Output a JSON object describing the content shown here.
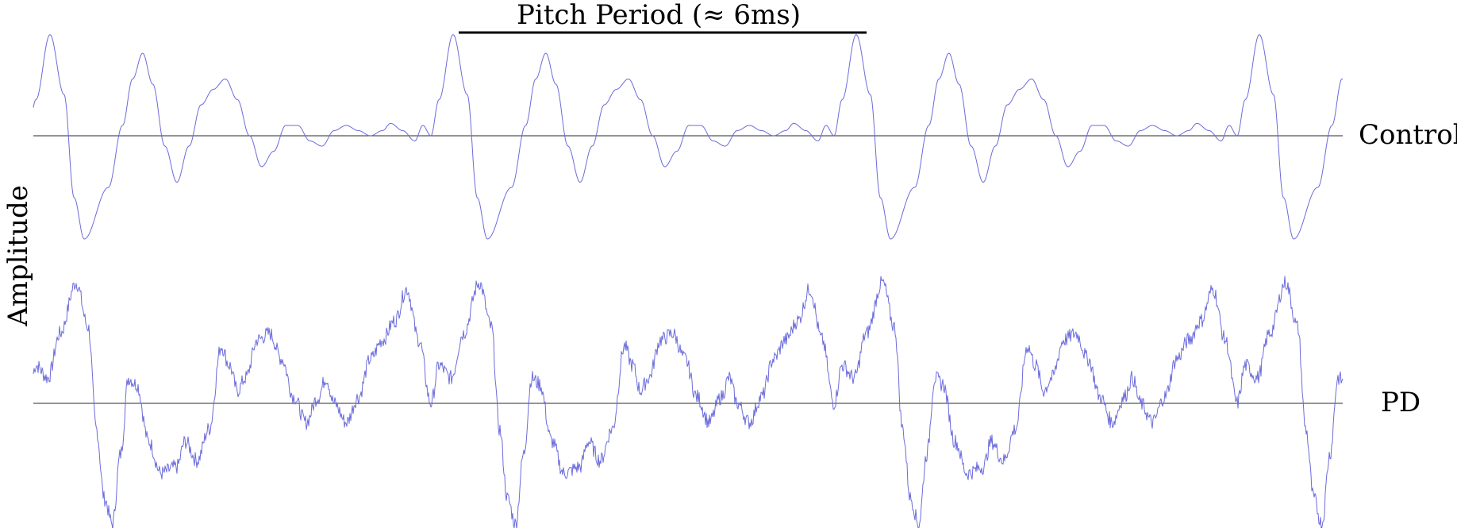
{
  "chart_data": {
    "type": "line",
    "title": "",
    "ylabel": "Amplitude",
    "xlabel": "",
    "grid": false,
    "legend": "none",
    "annotation": "Pitch Period (≈ 6ms)",
    "series_color": "#6b6bdc",
    "baseline_color": "#555555",
    "series": [
      {
        "name": "Control",
        "pattern": [
          [
            0,
            0.0
          ],
          [
            0.02,
            0.35
          ],
          [
            0.055,
            0.98
          ],
          [
            0.09,
            0.4
          ],
          [
            0.115,
            -0.6
          ],
          [
            0.14,
            -1.0
          ],
          [
            0.2,
            -0.5
          ],
          [
            0.235,
            0.1
          ],
          [
            0.26,
            0.55
          ],
          [
            0.285,
            0.8
          ],
          [
            0.31,
            0.5
          ],
          [
            0.34,
            -0.1
          ],
          [
            0.37,
            -0.45
          ],
          [
            0.4,
            -0.1
          ],
          [
            0.43,
            0.3
          ],
          [
            0.46,
            0.45
          ],
          [
            0.49,
            0.55
          ],
          [
            0.52,
            0.35
          ],
          [
            0.55,
            0.0
          ],
          [
            0.58,
            -0.3
          ],
          [
            0.61,
            -0.15
          ],
          [
            0.64,
            0.1
          ],
          [
            0.67,
            0.1
          ],
          [
            0.7,
            -0.05
          ],
          [
            0.73,
            -0.1
          ],
          [
            0.76,
            0.05
          ],
          [
            0.79,
            0.1
          ],
          [
            0.82,
            0.05
          ],
          [
            0.85,
            0.0
          ],
          [
            0.88,
            0.05
          ],
          [
            0.9,
            0.12
          ],
          [
            0.93,
            0.05
          ],
          [
            0.96,
            -0.05
          ],
          [
            0.98,
            0.1
          ],
          [
            1,
            0.0
          ]
        ]
      },
      {
        "name": "PD",
        "pattern": [
          [
            0,
            0.0
          ],
          [
            0.02,
            0.3
          ],
          [
            0.05,
            0.2
          ],
          [
            0.08,
            0.55
          ],
          [
            0.12,
            0.95
          ],
          [
            0.15,
            0.6
          ],
          [
            0.17,
            -0.2
          ],
          [
            0.19,
            -0.75
          ],
          [
            0.21,
            -0.95
          ],
          [
            0.23,
            -0.4
          ],
          [
            0.25,
            0.2
          ],
          [
            0.27,
            0.15
          ],
          [
            0.3,
            -0.3
          ],
          [
            0.33,
            -0.55
          ],
          [
            0.37,
            -0.5
          ],
          [
            0.39,
            -0.3
          ],
          [
            0.42,
            -0.45
          ],
          [
            0.45,
            -0.2
          ],
          [
            0.48,
            0.45
          ],
          [
            0.5,
            0.3
          ],
          [
            0.52,
            0.1
          ],
          [
            0.54,
            0.2
          ],
          [
            0.57,
            0.5
          ],
          [
            0.6,
            0.55
          ],
          [
            0.63,
            0.35
          ],
          [
            0.66,
            0.05
          ],
          [
            0.69,
            -0.15
          ],
          [
            0.72,
            0.05
          ],
          [
            0.74,
            0.2
          ],
          [
            0.76,
            0.0
          ],
          [
            0.79,
            -0.15
          ],
          [
            0.82,
            0.05
          ],
          [
            0.85,
            0.35
          ],
          [
            0.88,
            0.5
          ],
          [
            0.91,
            0.65
          ],
          [
            0.94,
            0.9
          ],
          [
            0.97,
            0.5
          ],
          [
            1,
            0.0
          ]
        ]
      }
    ]
  }
}
